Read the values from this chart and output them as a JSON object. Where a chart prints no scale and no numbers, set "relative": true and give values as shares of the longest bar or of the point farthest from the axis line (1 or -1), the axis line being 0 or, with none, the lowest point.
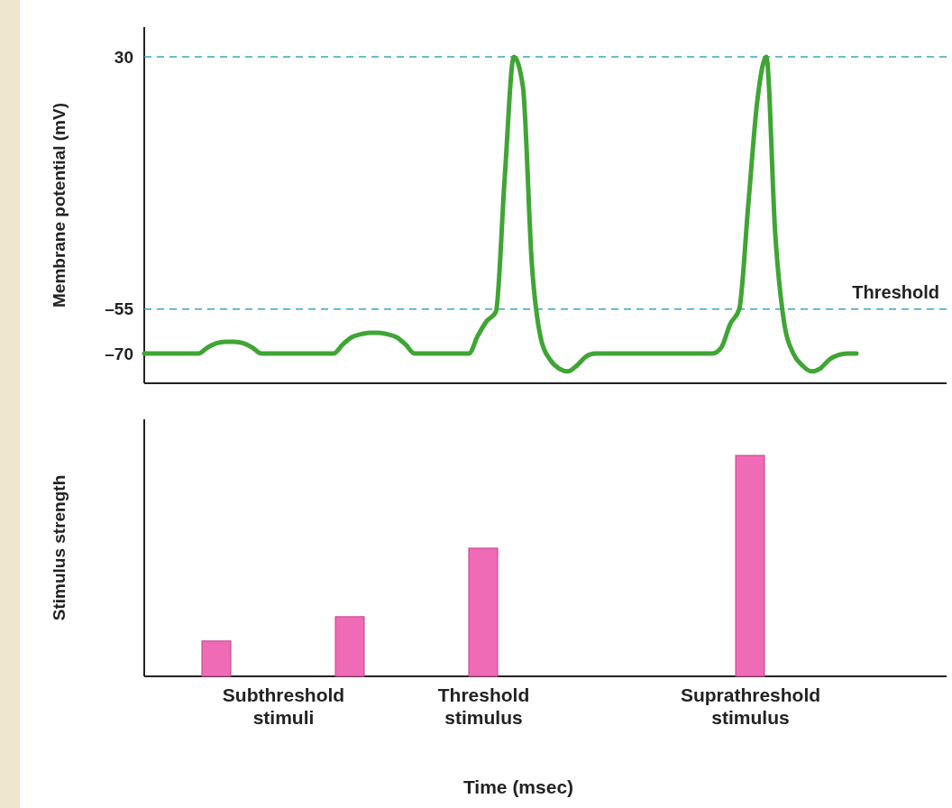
{
  "chart_data": [
    {
      "type": "line",
      "ylabel": "Membrane potential (mV)",
      "categories": [
        null,
        null,
        null,
        null,
        null,
        null,
        null,
        null,
        null,
        null,
        null,
        null,
        null,
        null,
        null,
        null,
        null,
        null,
        null,
        null,
        null,
        null,
        null,
        null,
        null,
        null,
        null,
        null,
        null,
        null,
        null,
        null,
        null,
        null,
        null,
        null,
        null,
        null,
        null,
        null,
        null,
        null,
        null,
        null,
        null,
        null,
        null,
        null,
        null,
        null,
        null,
        null,
        null,
        null,
        null,
        null,
        null,
        null,
        null,
        null,
        null,
        null,
        null,
        null,
        null,
        null,
        null,
        null,
        null,
        null,
        null,
        null,
        null,
        null,
        null,
        null,
        null,
        null,
        null,
        null
      ],
      "series": [
        {
          "color": "#3fa535",
          "values": [
            -70,
            -70,
            -70,
            -70,
            -70,
            -70,
            -70,
            -68,
            -66.5,
            -66,
            -66,
            -66.5,
            -68,
            -70,
            -70,
            -70,
            -70,
            -70,
            -70,
            -70,
            -70,
            -70,
            -67,
            -64.5,
            -63.5,
            -63,
            -63,
            -63.5,
            -64.5,
            -67,
            -70,
            -70,
            -70,
            -70,
            -70,
            -70,
            -70,
            -64,
            -59,
            -56,
            -10,
            30,
            20,
            -40,
            -65,
            -72,
            -75,
            -76,
            -74,
            -71,
            -70,
            -70,
            -70,
            -70,
            -70,
            -70,
            -70,
            -70,
            -70,
            -70,
            -70,
            -70,
            -70,
            -70,
            -68,
            -60,
            -55,
            -20,
            15,
            30,
            -30,
            -60,
            -70,
            -74,
            -76,
            -75,
            -72,
            -70.5,
            -70,
            -70
          ]
        }
      ],
      "ylim": [
        -80,
        40
      ],
      "yticks": [
        30,
        {
          "value": -55,
          "label": "–55"
        },
        {
          "value": -70,
          "label": "–70"
        }
      ],
      "tick_labels": "y",
      "ref_lines": [
        {
          "axis": "y",
          "value": 30,
          "color": "#3aa6b9",
          "line_style": "dashed"
        },
        {
          "axis": "y",
          "value": -55,
          "label": "Threshold",
          "color": "#3aa6b9",
          "line_style": "dashed"
        }
      ]
    },
    {
      "type": "bar",
      "ylabel": "Stimulus strength",
      "xlabel": "Time (msec)",
      "relative": true,
      "tick_labels": "x",
      "categories": [
        null,
        null,
        "Subthreshold stimuli",
        null,
        null,
        "Threshold stimulus",
        null,
        null,
        null,
        "Suprathreshold stimulus",
        null,
        null
      ],
      "values": [
        null,
        0.16,
        null,
        0.27,
        null,
        0.58,
        null,
        null,
        null,
        1,
        null,
        null
      ],
      "color": "#f06bb5"
    }
  ]
}
